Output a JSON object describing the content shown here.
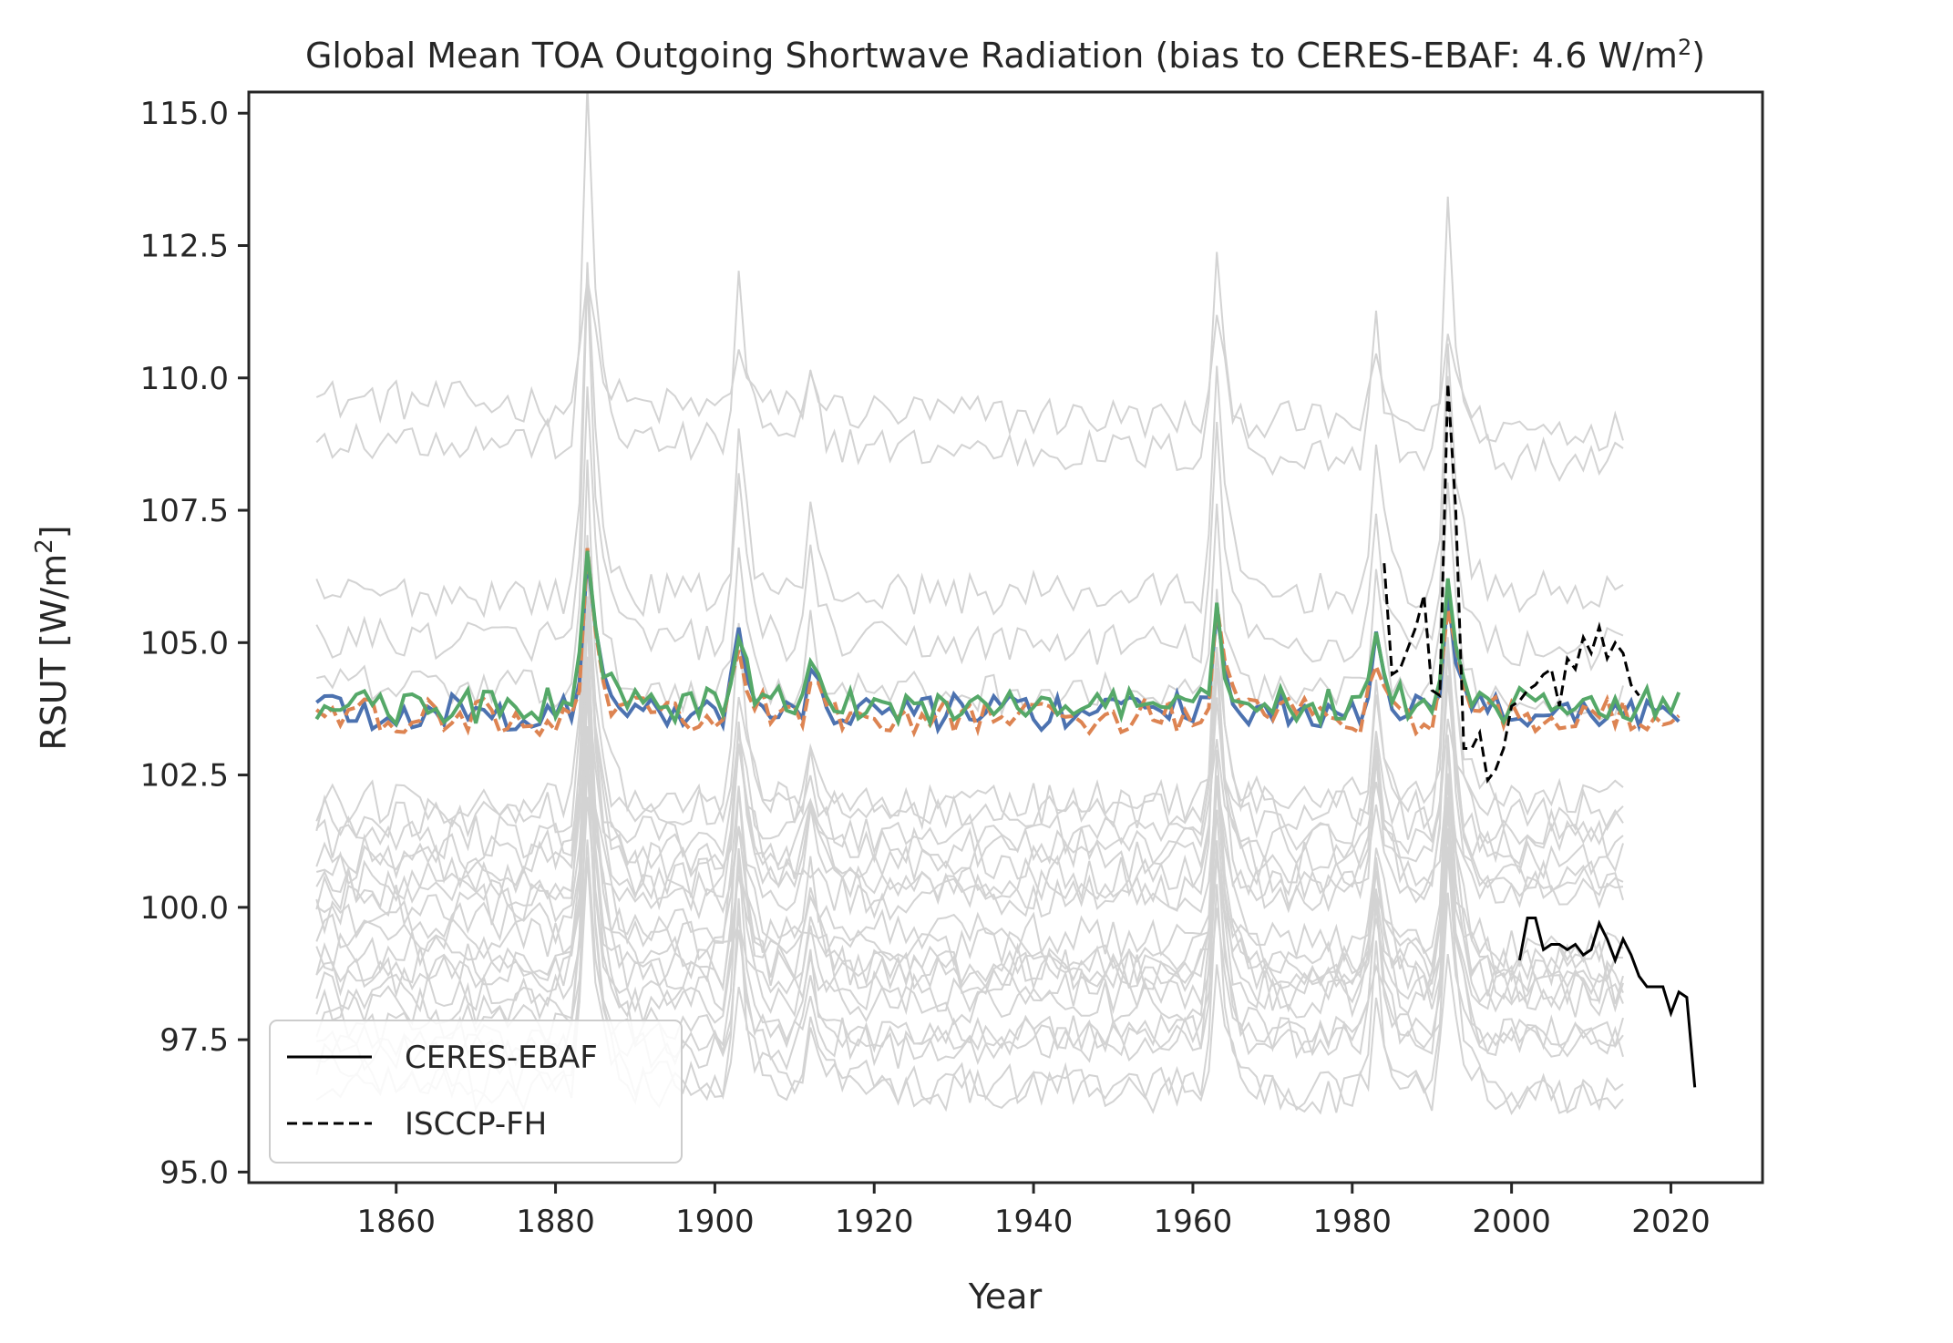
{
  "chart_data": {
    "type": "line",
    "title": "Global Mean TOA Outgoing Shortwave Radiation (bias to CERES-EBAF: 4.6 W/m",
    "title_sup": "2",
    "title_end": ")",
    "xlabel": "Year",
    "ylabel": "RSUT [W/m",
    "ylabel_sup": "2",
    "ylabel_end": "]",
    "xlim": [
      1841.5,
      2031.5
    ],
    "ylim": [
      94.8,
      115.4
    ],
    "x_ticks": [
      "1860",
      "1880",
      "1900",
      "1920",
      "1940",
      "1960",
      "1980",
      "2000",
      "2020"
    ],
    "y_ticks": [
      "95.0",
      "97.5",
      "100.0",
      "102.5",
      "105.0",
      "107.5",
      "110.0",
      "112.5",
      "115.0"
    ],
    "grid": false,
    "legend_position": "lower-left",
    "colors": {
      "models_gray": "#d3d3d3",
      "blue": "#4c72b0",
      "orange": "#dd8452",
      "green": "#55a868",
      "obs": "#000000"
    },
    "model_ensemble": {
      "years": [
        1850,
        2014
      ],
      "member_base_levels": [
        109.6,
        108.9,
        105.9,
        105.1,
        104.2,
        102.0,
        101.7,
        101.3,
        101.0,
        100.8,
        100.5,
        100.3,
        100.0,
        99.8,
        99.5,
        99.2,
        99.0,
        98.7,
        98.4,
        98.1,
        97.8,
        97.5,
        97.2,
        96.9,
        96.6
      ],
      "volcanic_peaks": [
        {
          "year": 1884,
          "amplitude": 4.5
        },
        {
          "year": 1903,
          "amplitude": 2.2
        },
        {
          "year": 1912,
          "amplitude": 1.0
        },
        {
          "year": 1963,
          "amplitude": 2.8
        },
        {
          "year": 1983,
          "amplitude": 1.8
        },
        {
          "year": 1992,
          "amplitude": 3.3
        }
      ]
    },
    "highlighted_series": [
      {
        "color": "blue",
        "years": [
          1850,
          2021
        ],
        "base": 103.7
      },
      {
        "color": "orange",
        "dashed": true,
        "years": [
          1850,
          2021
        ],
        "base": 103.6
      },
      {
        "color": "green",
        "years": [
          1850,
          2021
        ],
        "base": 103.8
      }
    ],
    "series": [
      {
        "name": "CERES-EBAF",
        "style": "solid",
        "x": [
          2001,
          2002,
          2003,
          2004,
          2005,
          2006,
          2007,
          2008,
          2009,
          2010,
          2011,
          2012,
          2013,
          2014,
          2015,
          2016,
          2017,
          2018,
          2019,
          2020,
          2021,
          2022,
          2023
        ],
        "y": [
          99.0,
          99.8,
          99.8,
          99.2,
          99.3,
          99.3,
          99.2,
          99.3,
          99.1,
          99.2,
          99.7,
          99.4,
          99.0,
          99.4,
          99.1,
          98.7,
          98.5,
          98.5,
          98.5,
          98.0,
          98.4,
          98.3,
          96.6
        ]
      },
      {
        "name": "ISCCP-FH",
        "style": "dashed",
        "x": [
          1984,
          1985,
          1986,
          1987,
          1988,
          1989,
          1990,
          1991,
          1992,
          1993,
          1994,
          1995,
          1996,
          1997,
          1998,
          1999,
          2000,
          2001,
          2002,
          2003,
          2004,
          2005,
          2006,
          2007,
          2008,
          2009,
          2010,
          2011,
          2012,
          2013,
          2014,
          2015,
          2016
        ],
        "y": [
          106.5,
          104.4,
          104.5,
          104.9,
          105.3,
          105.9,
          104.1,
          104.0,
          109.9,
          107.5,
          103.0,
          103.0,
          103.3,
          102.4,
          102.6,
          103.0,
          103.8,
          103.9,
          104.1,
          104.2,
          104.4,
          104.5,
          103.8,
          104.7,
          104.5,
          105.1,
          104.8,
          105.3,
          104.7,
          105.0,
          104.8,
          104.2,
          104.0
        ]
      }
    ]
  }
}
